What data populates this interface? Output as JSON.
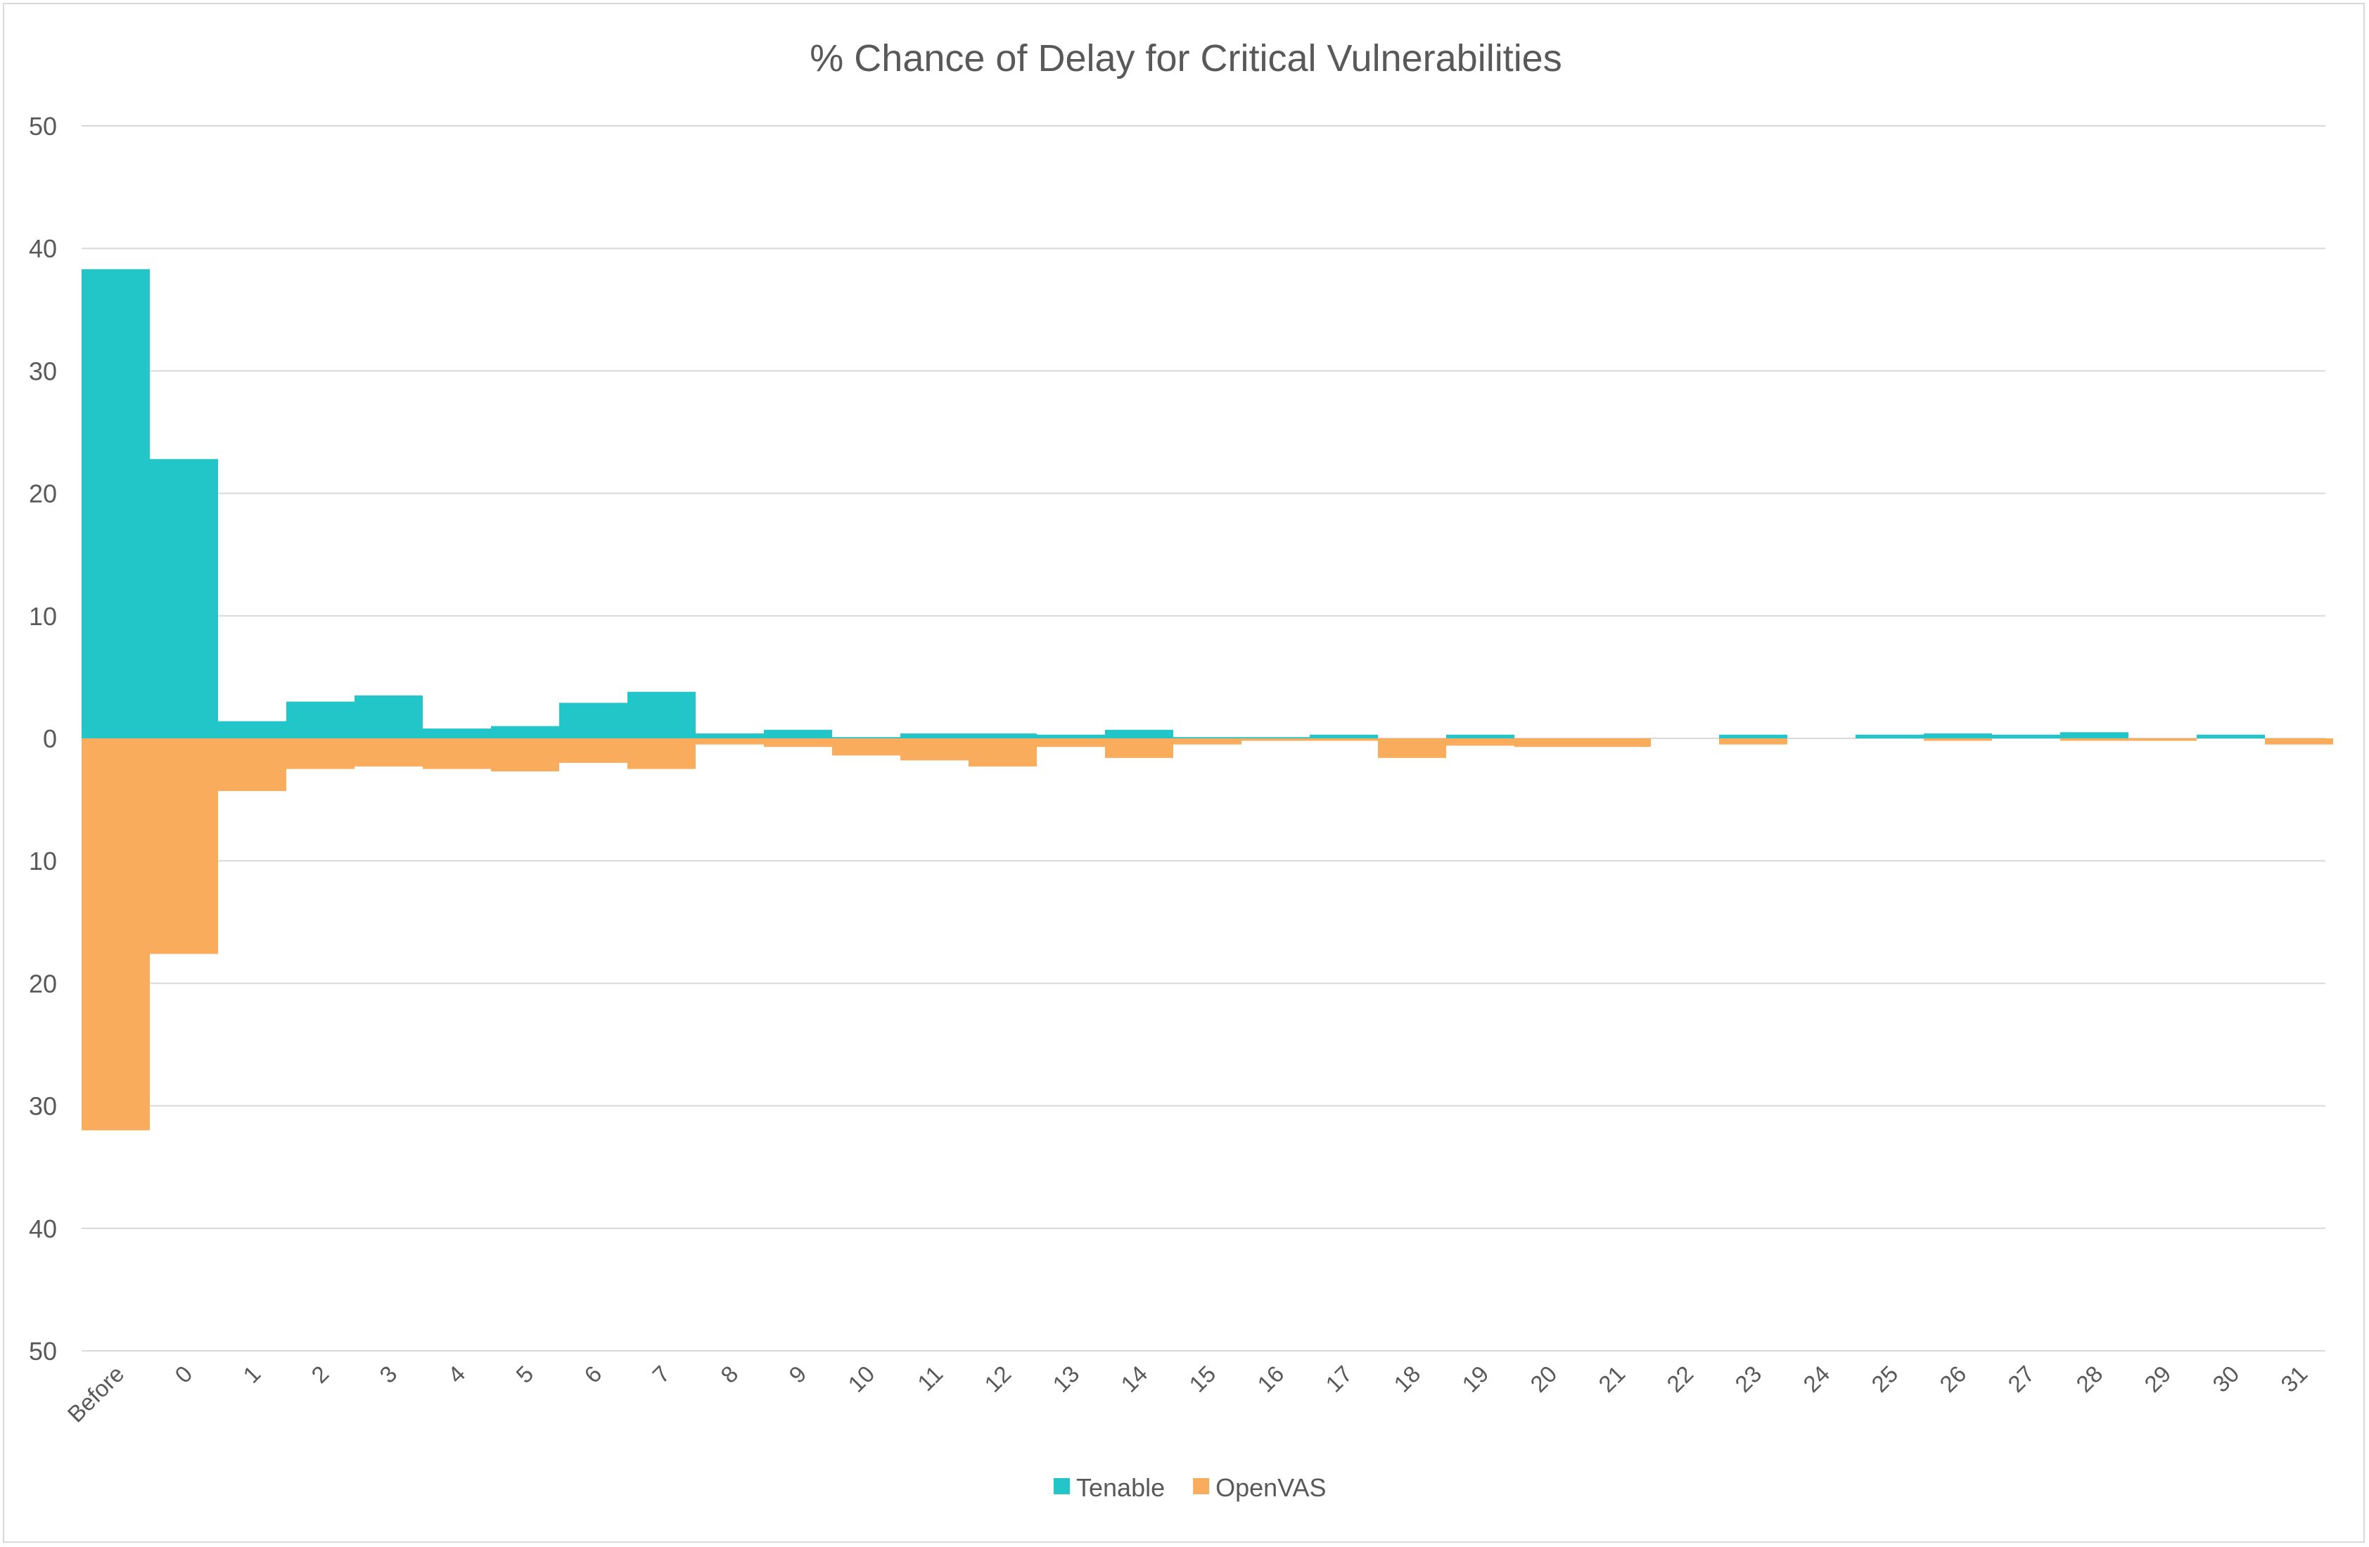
{
  "chart_data": {
    "type": "bar",
    "title": "% Chance of Delay for Critical Vulnerabilities",
    "xlabel": "",
    "ylabel": "",
    "orientation": "mirrored",
    "ylim": [
      -50,
      50
    ],
    "yticks": [
      50,
      40,
      30,
      20,
      10,
      0,
      10,
      20,
      30,
      40,
      50
    ],
    "ytick_values": [
      50,
      40,
      30,
      20,
      10,
      0,
      -10,
      -20,
      -30,
      -40,
      -50
    ],
    "grid": true,
    "legend_position": "bottom",
    "categories": [
      "Before",
      "0",
      "1",
      "2",
      "3",
      "4",
      "5",
      "6",
      "7",
      "8",
      "9",
      "10",
      "11",
      "12",
      "13",
      "14",
      "15",
      "16",
      "17",
      "18",
      "19",
      "20",
      "21",
      "22",
      "23",
      "24",
      "25",
      "26",
      "27",
      "28",
      "29",
      "30",
      "31"
    ],
    "series": [
      {
        "name": "Tenable",
        "color": "#22c5c8",
        "direction": "up",
        "values": [
          38.3,
          22.8,
          1.4,
          3.0,
          3.5,
          0.8,
          1.0,
          2.9,
          3.8,
          0.4,
          0.7,
          0.1,
          0.4,
          0.4,
          0.3,
          0.7,
          0.1,
          0.1,
          0.3,
          0.0,
          0.3,
          0.0,
          0.0,
          0.0,
          0.3,
          0.0,
          0.3,
          0.4,
          0.3,
          0.5,
          0.0,
          0.3,
          0.0
        ]
      },
      {
        "name": "OpenVAS",
        "color": "#f8ac5c",
        "direction": "down",
        "values": [
          32.0,
          17.6,
          4.3,
          2.5,
          2.3,
          2.5,
          2.7,
          2.0,
          2.5,
          0.5,
          0.7,
          1.4,
          1.8,
          2.3,
          0.7,
          1.6,
          0.5,
          0.2,
          0.2,
          1.6,
          0.6,
          0.7,
          0.7,
          0.0,
          0.5,
          0.0,
          0.0,
          0.2,
          0.0,
          0.2,
          0.2,
          0.0,
          0.5
        ]
      }
    ]
  }
}
